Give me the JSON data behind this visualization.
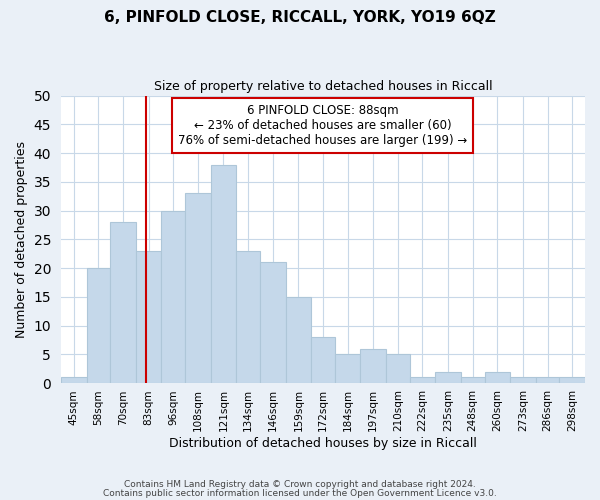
{
  "title": "6, PINFOLD CLOSE, RICCALL, YORK, YO19 6QZ",
  "subtitle": "Size of property relative to detached houses in Riccall",
  "xlabel": "Distribution of detached houses by size in Riccall",
  "ylabel": "Number of detached properties",
  "bar_labels": [
    "45sqm",
    "58sqm",
    "70sqm",
    "83sqm",
    "96sqm",
    "108sqm",
    "121sqm",
    "134sqm",
    "146sqm",
    "159sqm",
    "172sqm",
    "184sqm",
    "197sqm",
    "210sqm",
    "222sqm",
    "235sqm",
    "248sqm",
    "260sqm",
    "273sqm",
    "286sqm",
    "298sqm"
  ],
  "bar_values": [
    1,
    20,
    28,
    23,
    30,
    33,
    38,
    23,
    21,
    15,
    8,
    5,
    6,
    5,
    1,
    2,
    1,
    2,
    1,
    1,
    1
  ],
  "bar_color": "#c5d8ea",
  "bar_edgecolor": "#aec6d8",
  "ylim": [
    0,
    50
  ],
  "yticks": [
    0,
    5,
    10,
    15,
    20,
    25,
    30,
    35,
    40,
    45,
    50
  ],
  "redline_x": 88,
  "annotation_box_text": "6 PINFOLD CLOSE: 88sqm\n← 23% of detached houses are smaller (60)\n76% of semi-detached houses are larger (199) →",
  "annotation_box_color": "#ffffff",
  "annotation_box_edgecolor": "#cc0000",
  "red_line_color": "#cc0000",
  "footer_line1": "Contains HM Land Registry data © Crown copyright and database right 2024.",
  "footer_line2": "Contains public sector information licensed under the Open Government Licence v3.0.",
  "bg_color": "#eaf0f7",
  "plot_bg_color": "#ffffff",
  "grid_color": "#c8d8e8"
}
